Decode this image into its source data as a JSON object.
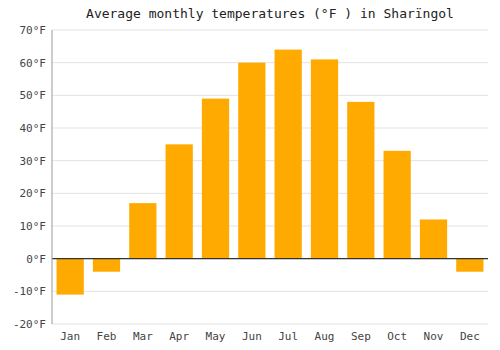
{
  "chart_data": {
    "type": "bar",
    "title": "Average monthly temperatures (°F ) in Sharïngol",
    "categories": [
      "Jan",
      "Feb",
      "Mar",
      "Apr",
      "May",
      "Jun",
      "Jul",
      "Aug",
      "Sep",
      "Oct",
      "Nov",
      "Dec"
    ],
    "values": [
      -11,
      -4,
      17,
      35,
      49,
      60,
      64,
      61,
      48,
      33,
      12,
      -4
    ],
    "color": "#FFAA00",
    "ylim": [
      -20,
      70
    ],
    "yticks": [
      {
        "value": -20,
        "label": "-20°F"
      },
      {
        "value": -10,
        "label": "-10°F"
      },
      {
        "value": 0,
        "label": "0°F"
      },
      {
        "value": 10,
        "label": "10°F"
      },
      {
        "value": 20,
        "label": "20°F"
      },
      {
        "value": 30,
        "label": "30°F"
      },
      {
        "value": 40,
        "label": "40°F"
      },
      {
        "value": 50,
        "label": "50°F"
      },
      {
        "value": 60,
        "label": "60°F"
      },
      {
        "value": 70,
        "label": "70°F"
      }
    ],
    "grid": true
  }
}
